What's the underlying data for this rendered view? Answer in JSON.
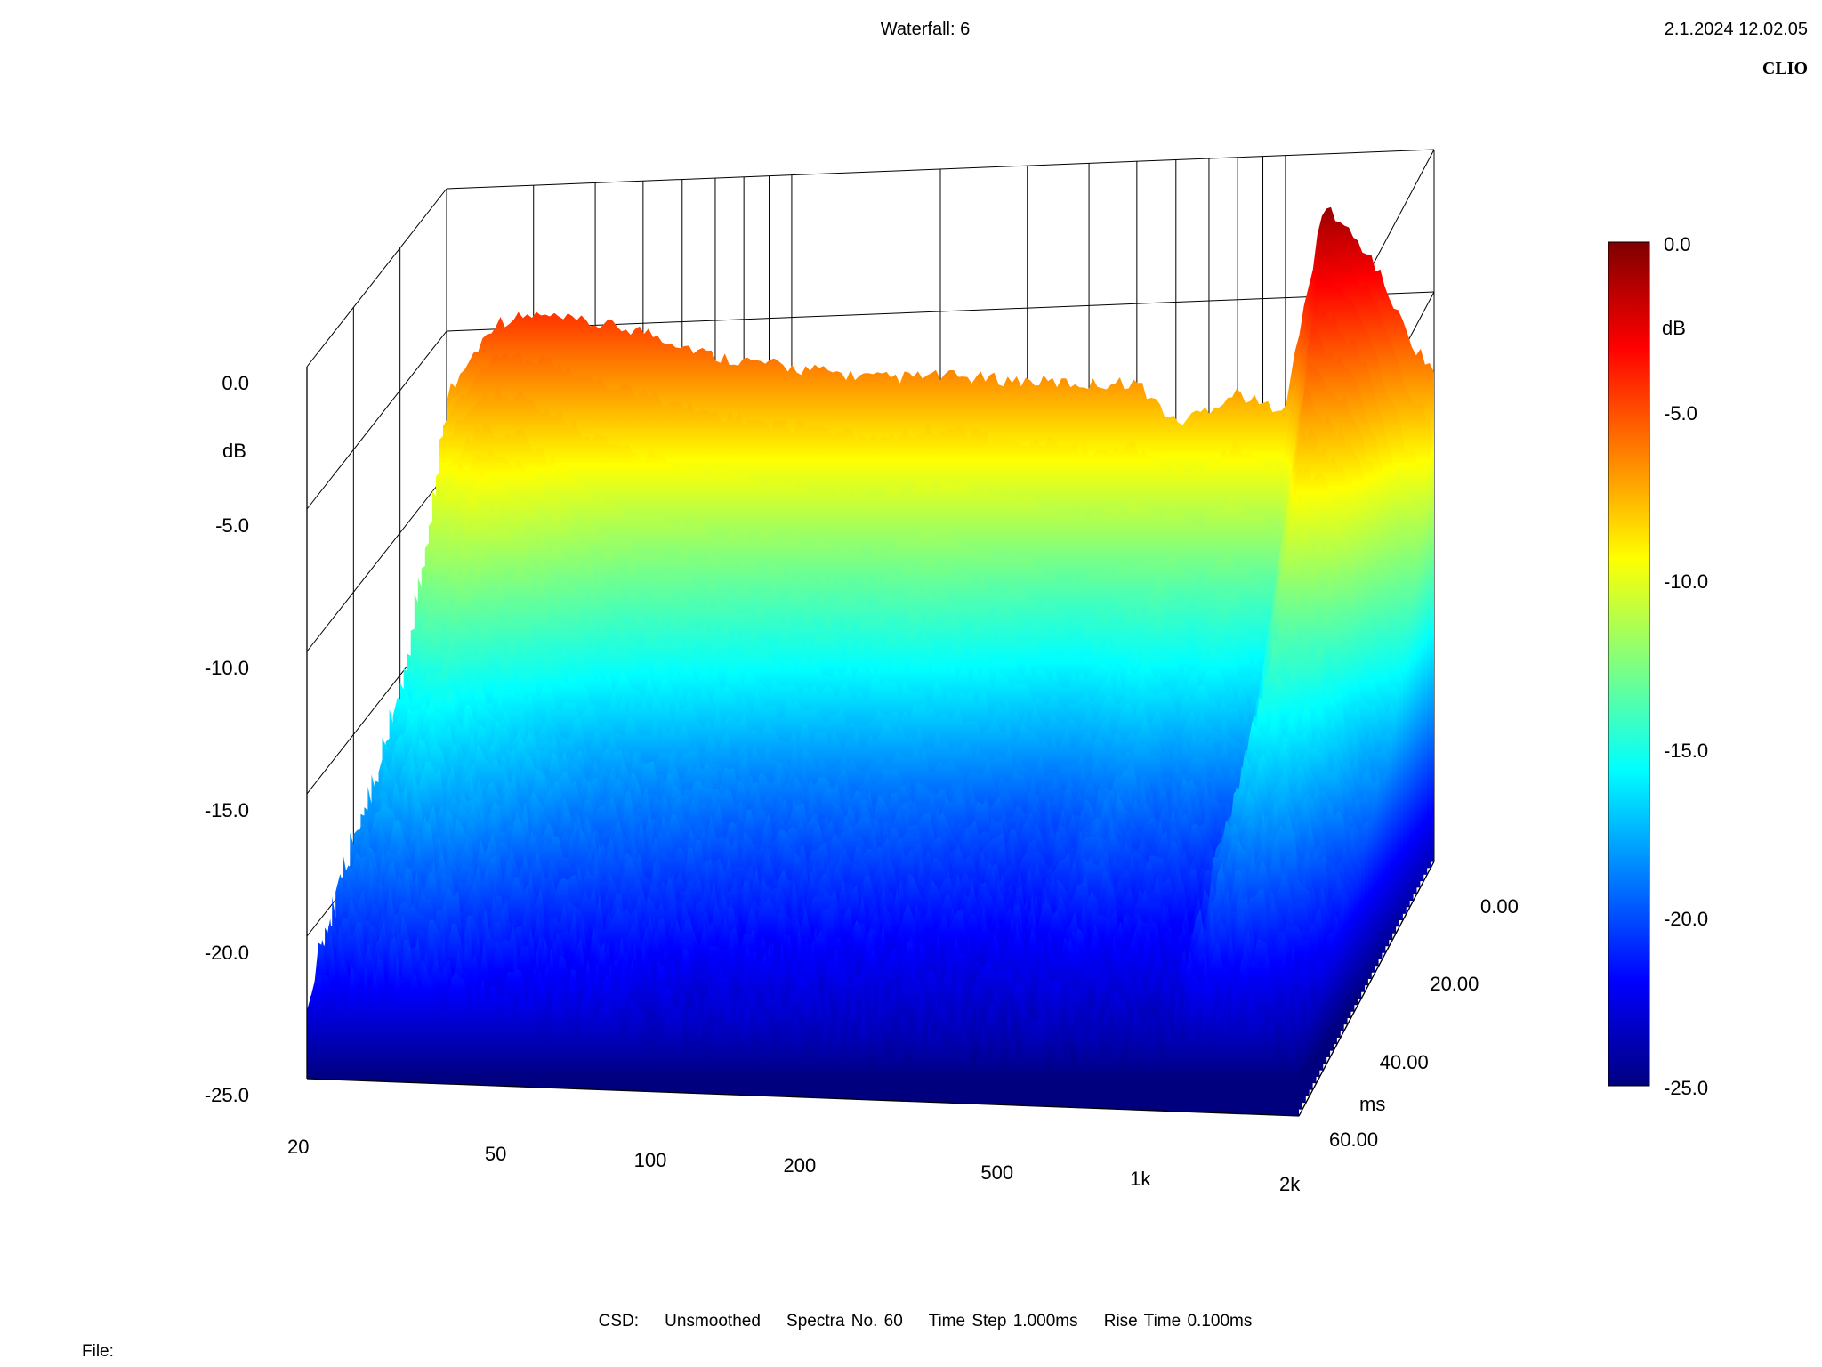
{
  "header": {
    "title": "Waterfall: 6",
    "timestamp": "2.1.2024 12.02.05",
    "brand": "CLIO"
  },
  "footer": {
    "csd_label": "CSD:",
    "smoothing": "Unsmoothed",
    "spectra": "Spectra No. 60",
    "time_step": "Time Step 1.000ms",
    "rise_time": "Rise Time 0.100ms",
    "file_label": "File:"
  },
  "chart_data": {
    "type": "waterfall",
    "title": "Waterfall: 6",
    "zlabel": "dB",
    "zlim": [
      -25,
      0
    ],
    "z_ticks": [
      "0.0",
      "-5.0",
      "-10.0",
      "-15.0",
      "-20.0",
      "-25.0"
    ],
    "xlabel": "",
    "x_scale": "log",
    "xlim": [
      20,
      2000
    ],
    "x_ticks": [
      {
        "value": 20,
        "label": "20"
      },
      {
        "value": 50,
        "label": "50"
      },
      {
        "value": 100,
        "label": "100"
      },
      {
        "value": 200,
        "label": "200"
      },
      {
        "value": 500,
        "label": "500"
      },
      {
        "value": 1000,
        "label": "1k"
      },
      {
        "value": 2000,
        "label": "2k"
      }
    ],
    "ylabel": "ms",
    "ylim": [
      0,
      60
    ],
    "y_ticks": [
      "0.00",
      "20.00",
      "40.00",
      "60.00"
    ],
    "colorbar": {
      "label": "dB",
      "ticks": [
        "0.0",
        "-5.0",
        "-10.0",
        "-15.0",
        "-20.0",
        "-25.0"
      ],
      "colors": [
        "#7f0000",
        "#ff0000",
        "#ffff00",
        "#00ffff",
        "#0000ff",
        "#00007f"
      ]
    },
    "series": [
      {
        "time_ms": 0,
        "freq_hz": [
          20,
          25,
          30,
          40,
          50,
          70,
          100,
          150,
          200,
          300,
          400,
          500,
          600,
          700,
          800,
          900,
          1000,
          1200,
          1500,
          1800,
          2000
        ],
        "db": [
          -7.5,
          -5.0,
          -4.8,
          -5.2,
          -5.5,
          -6.5,
          -7.0,
          -7.5,
          -7.5,
          -7.8,
          -8.0,
          -8.0,
          -9.5,
          -9.0,
          -8.5,
          -9.0,
          -9.0,
          -2.0,
          -4.0,
          -7.0,
          -8.0
        ]
      },
      {
        "time_ms": 5,
        "freq_hz": [
          20,
          25,
          30,
          40,
          50,
          70,
          100,
          150,
          200,
          300,
          400,
          500,
          600,
          700,
          800,
          900,
          1000,
          1200,
          1500,
          1800,
          2000
        ],
        "db": [
          -10.0,
          -8.5,
          -9.0,
          -11.0,
          -12.0,
          -12.5,
          -13.0,
          -13.5,
          -13.0,
          -14.0,
          -15.0,
          -14.5,
          -14.0,
          -15.0,
          -14.0,
          -15.0,
          -15.5,
          -5.0,
          -7.0,
          -12.0,
          -13.0
        ]
      },
      {
        "time_ms": 20,
        "freq_hz": [
          20,
          25,
          30,
          40,
          50,
          70,
          100,
          150,
          200,
          300,
          400,
          500,
          600,
          700,
          800,
          900,
          1000,
          1200,
          1500,
          1800,
          2000
        ],
        "db": [
          -16.0,
          -15.0,
          -16.0,
          -17.0,
          -18.0,
          -18.5,
          -19.0,
          -19.5,
          -19.5,
          -20.0,
          -20.5,
          -20.0,
          -19.0,
          -20.0,
          -19.5,
          -20.0,
          -20.5,
          -14.0,
          -15.0,
          -18.0,
          -19.0
        ]
      },
      {
        "time_ms": 60,
        "freq_hz": [
          20,
          25,
          30,
          40,
          50,
          70,
          100,
          150,
          200,
          300,
          400,
          500,
          600,
          700,
          800,
          900,
          1000,
          1200,
          1500,
          1800,
          2000
        ],
        "db": [
          -23.0,
          -23.0,
          -22.5,
          -23.0,
          -23.5,
          -23.5,
          -24.0,
          -24.0,
          -24.0,
          -24.0,
          -24.0,
          -24.0,
          -24.0,
          -24.0,
          -24.0,
          -24.0,
          -24.0,
          -23.0,
          -23.0,
          -23.5,
          -24.0
        ]
      }
    ]
  }
}
